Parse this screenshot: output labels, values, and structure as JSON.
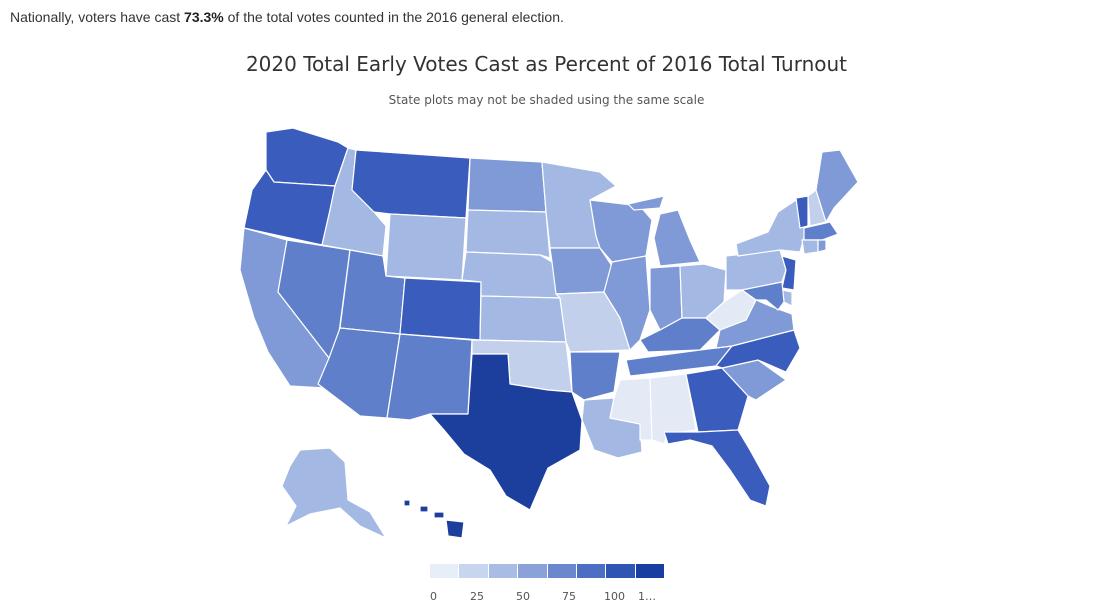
{
  "summary": {
    "prefix": "Nationally, voters have cast ",
    "value": "73.3%",
    "suffix": " of the total votes counted in the 2016 general election."
  },
  "map": {
    "title": "2020 Total Early Votes Cast as Percent of 2016 Total Turnout",
    "subtitle": "State plots may not be shaded using the same scale",
    "region": "United States",
    "states": [
      {
        "name": "Washington",
        "level": 6
      },
      {
        "name": "Oregon",
        "level": 6
      },
      {
        "name": "California",
        "level": 4
      },
      {
        "name": "Nevada",
        "level": 5
      },
      {
        "name": "Idaho",
        "level": 3
      },
      {
        "name": "Montana",
        "level": 6
      },
      {
        "name": "Wyoming",
        "level": 3
      },
      {
        "name": "Utah",
        "level": 5
      },
      {
        "name": "Colorado",
        "level": 6
      },
      {
        "name": "Arizona",
        "level": 5
      },
      {
        "name": "New Mexico",
        "level": 5
      },
      {
        "name": "North Dakota",
        "level": 4
      },
      {
        "name": "South Dakota",
        "level": 3
      },
      {
        "name": "Nebraska",
        "level": 3
      },
      {
        "name": "Kansas",
        "level": 3
      },
      {
        "name": "Oklahoma",
        "level": 2
      },
      {
        "name": "Texas",
        "level": 7
      },
      {
        "name": "Minnesota",
        "level": 3
      },
      {
        "name": "Iowa",
        "level": 4
      },
      {
        "name": "Missouri",
        "level": 2
      },
      {
        "name": "Arkansas",
        "level": 5
      },
      {
        "name": "Louisiana",
        "level": 3
      },
      {
        "name": "Wisconsin",
        "level": 4
      },
      {
        "name": "Illinois",
        "level": 4
      },
      {
        "name": "Michigan",
        "level": 4
      },
      {
        "name": "Indiana",
        "level": 4
      },
      {
        "name": "Ohio",
        "level": 3
      },
      {
        "name": "Kentucky",
        "level": 5
      },
      {
        "name": "Tennessee",
        "level": 5
      },
      {
        "name": "Mississippi",
        "level": 1
      },
      {
        "name": "Alabama",
        "level": 1
      },
      {
        "name": "Georgia",
        "level": 6
      },
      {
        "name": "Florida",
        "level": 6
      },
      {
        "name": "South Carolina",
        "level": 4
      },
      {
        "name": "North Carolina",
        "level": 6
      },
      {
        "name": "Virginia",
        "level": 4
      },
      {
        "name": "West Virginia",
        "level": 1
      },
      {
        "name": "Pennsylvania",
        "level": 3
      },
      {
        "name": "New York",
        "level": 3
      },
      {
        "name": "Vermont",
        "level": 6
      },
      {
        "name": "New Hampshire",
        "level": 2
      },
      {
        "name": "Maine",
        "level": 4
      },
      {
        "name": "Massachusetts",
        "level": 5
      },
      {
        "name": "Connecticut",
        "level": 3
      },
      {
        "name": "Rhode Island",
        "level": 4
      },
      {
        "name": "New Jersey",
        "level": 6
      },
      {
        "name": "Delaware",
        "level": 3
      },
      {
        "name": "Maryland",
        "level": 5
      },
      {
        "name": "Alaska",
        "level": 3
      },
      {
        "name": "Hawaii",
        "level": 7
      }
    ]
  },
  "colors": {
    "shades": [
      "#ffffff",
      "#e3e9f5",
      "#c3d0ec",
      "#a3b8e2",
      "#7f9ad6",
      "#5f7fcb",
      "#3a5cbc",
      "#1c3e9c"
    ],
    "border": "#ffffff"
  },
  "legend": {
    "colors": [
      "#e8eef8",
      "#c8d5ee",
      "#a8bce4",
      "#8aa2d9",
      "#6b88ce",
      "#4c6ec3",
      "#2e54b4",
      "#173ea0"
    ],
    "ticks": [
      "0",
      "25",
      "50",
      "75",
      "100",
      "1…"
    ]
  }
}
